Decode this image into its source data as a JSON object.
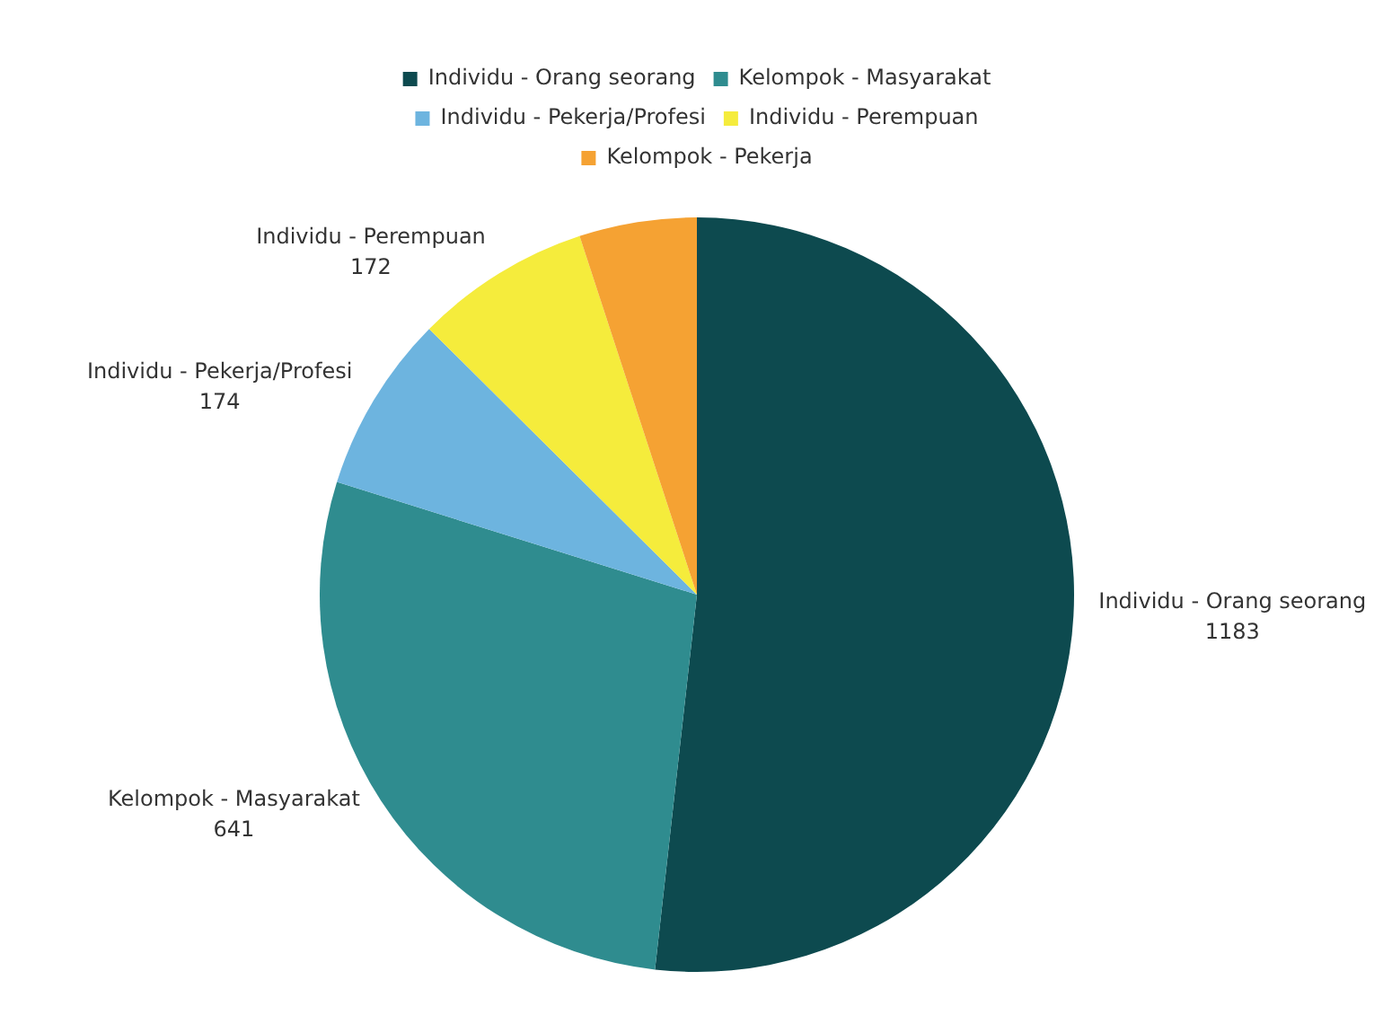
{
  "chart_data": {
    "type": "pie",
    "categories": [
      "Individu - Orang seorang",
      "Kelompok - Masyarakat",
      "Individu - Pekerja/Profesi",
      "Individu - Perempuan",
      "Kelompok - Pekerja"
    ],
    "values": [
      1183,
      641,
      174,
      172,
      115
    ],
    "value_labels": [
      "1183",
      "641",
      "174",
      "172",
      null
    ],
    "colors": [
      "#0d4a4f",
      "#2f8c8f",
      "#6db4df",
      "#f5ec3c",
      "#f5a233"
    ],
    "legend": "top"
  }
}
